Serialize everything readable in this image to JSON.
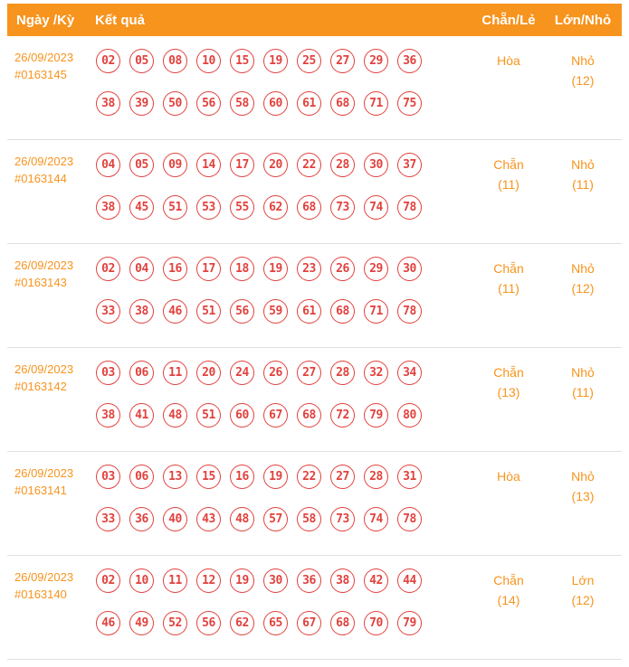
{
  "headers": {
    "date": "Ngày /Kỳ",
    "result": "Kết quả",
    "even_odd": "Chẵn/Lẻ",
    "big_small": "Lớn/Nhỏ"
  },
  "rows": [
    {
      "date": "26/09/2023",
      "period": "#0163145",
      "numbers_line1": [
        "02",
        "05",
        "08",
        "10",
        "15",
        "19",
        "25",
        "27",
        "29",
        "36"
      ],
      "numbers_line2": [
        "38",
        "39",
        "50",
        "56",
        "58",
        "60",
        "61",
        "68",
        "71",
        "75"
      ],
      "even_odd": "Hòa",
      "even_odd_count": "",
      "big_small": "Nhỏ",
      "big_small_count": "(12)"
    },
    {
      "date": "26/09/2023",
      "period": "#0163144",
      "numbers_line1": [
        "04",
        "05",
        "09",
        "14",
        "17",
        "20",
        "22",
        "28",
        "30",
        "37"
      ],
      "numbers_line2": [
        "38",
        "45",
        "51",
        "53",
        "55",
        "62",
        "68",
        "73",
        "74",
        "78"
      ],
      "even_odd": "Chẵn",
      "even_odd_count": "(11)",
      "big_small": "Nhỏ",
      "big_small_count": "(11)"
    },
    {
      "date": "26/09/2023",
      "period": "#0163143",
      "numbers_line1": [
        "02",
        "04",
        "16",
        "17",
        "18",
        "19",
        "23",
        "26",
        "29",
        "30"
      ],
      "numbers_line2": [
        "33",
        "38",
        "46",
        "51",
        "56",
        "59",
        "61",
        "68",
        "71",
        "78"
      ],
      "even_odd": "Chẵn",
      "even_odd_count": "(11)",
      "big_small": "Nhỏ",
      "big_small_count": "(12)"
    },
    {
      "date": "26/09/2023",
      "period": "#0163142",
      "numbers_line1": [
        "03",
        "06",
        "11",
        "20",
        "24",
        "26",
        "27",
        "28",
        "32",
        "34"
      ],
      "numbers_line2": [
        "38",
        "41",
        "48",
        "51",
        "60",
        "67",
        "68",
        "72",
        "79",
        "80"
      ],
      "even_odd": "Chẵn",
      "even_odd_count": "(13)",
      "big_small": "Nhỏ",
      "big_small_count": "(11)"
    },
    {
      "date": "26/09/2023",
      "period": "#0163141",
      "numbers_line1": [
        "03",
        "06",
        "13",
        "15",
        "16",
        "19",
        "22",
        "27",
        "28",
        "31"
      ],
      "numbers_line2": [
        "33",
        "36",
        "40",
        "43",
        "48",
        "57",
        "58",
        "73",
        "74",
        "78"
      ],
      "even_odd": "Hòa",
      "even_odd_count": "",
      "big_small": "Nhỏ",
      "big_small_count": "(13)"
    },
    {
      "date": "26/09/2023",
      "period": "#0163140",
      "numbers_line1": [
        "02",
        "10",
        "11",
        "12",
        "19",
        "30",
        "36",
        "38",
        "42",
        "44"
      ],
      "numbers_line2": [
        "46",
        "49",
        "52",
        "56",
        "62",
        "65",
        "67",
        "68",
        "70",
        "79"
      ],
      "even_odd": "Chẵn",
      "even_odd_count": "(14)",
      "big_small": "Lớn",
      "big_small_count": "(12)"
    }
  ],
  "colors": {
    "header_bg": "#F7941E",
    "accent_orange": "#F7941E",
    "ball_red": "#E2413D",
    "row_border": "#E0E0E0"
  }
}
